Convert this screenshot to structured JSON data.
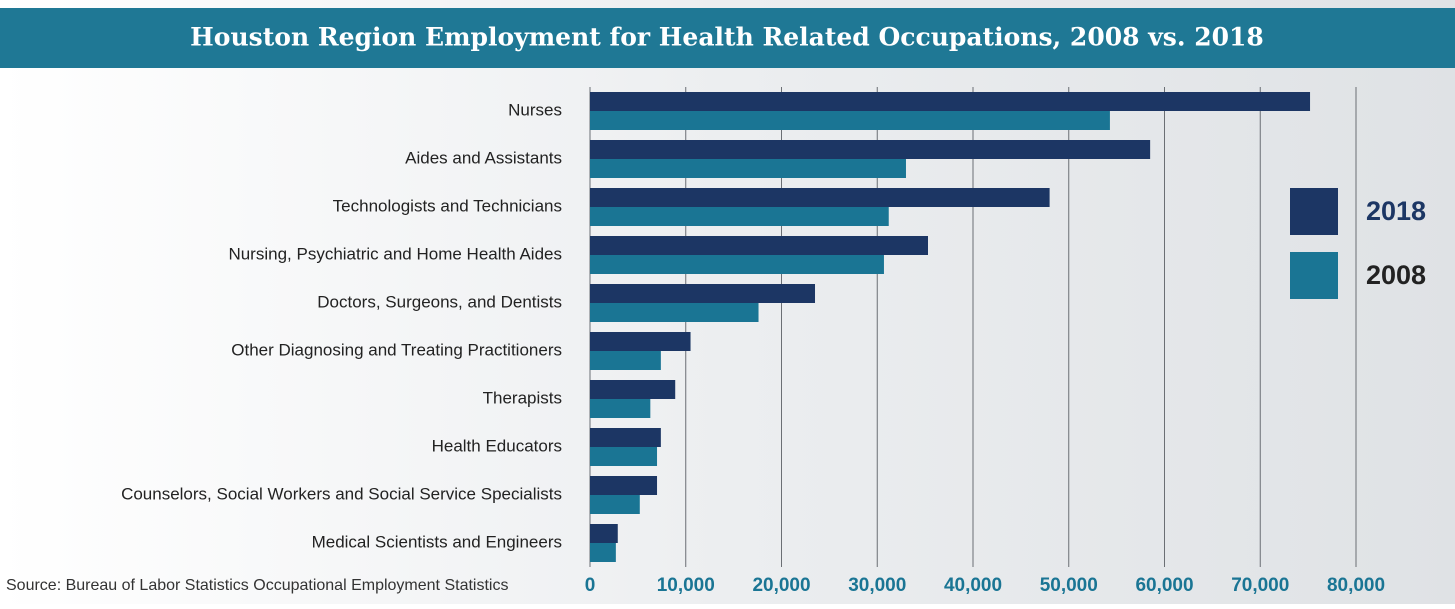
{
  "chart_data": {
    "type": "hbar",
    "title": "Houston Region Employment for Health Related Occupations, 2008 vs. 2018",
    "source": "Source: Bureau of Labor Statistics Occupational Employment Statistics",
    "categories": [
      "Nurses",
      "Aides and Assistants",
      "Technologists and Technicians",
      "Nursing, Psychiatric and Home Health Aides",
      "Doctors, Surgeons, and Dentists",
      "Other Diagnosing and Treating Practitioners",
      "Therapists",
      "Health Educators",
      "Counselors, Social Workers and Social Service Specialists",
      "Medical Scientists and Engineers"
    ],
    "series": [
      {
        "name": "2018",
        "color": "#1c3664",
        "values": [
          75200,
          58500,
          48000,
          35300,
          23500,
          10500,
          8900,
          7400,
          7000,
          2900
        ]
      },
      {
        "name": "2008",
        "color": "#1a7594",
        "values": [
          54300,
          33000,
          31200,
          30700,
          17600,
          7400,
          6300,
          7000,
          5200,
          2700
        ]
      }
    ],
    "xlim": [
      0,
      80000
    ],
    "xticks": [
      0,
      {
        "value": 10000,
        "label": "10,000"
      },
      {
        "value": 20000,
        "label": "20,000"
      },
      {
        "value": 30000,
        "label": "30,000"
      },
      {
        "value": 40000,
        "label": "40,000"
      },
      {
        "value": 50000,
        "label": "50,000"
      },
      {
        "value": 60000,
        "label": "60,000"
      },
      {
        "value": 70000,
        "label": "70,000"
      },
      {
        "value": 80000,
        "label": "80,000"
      }
    ],
    "grid": true
  }
}
